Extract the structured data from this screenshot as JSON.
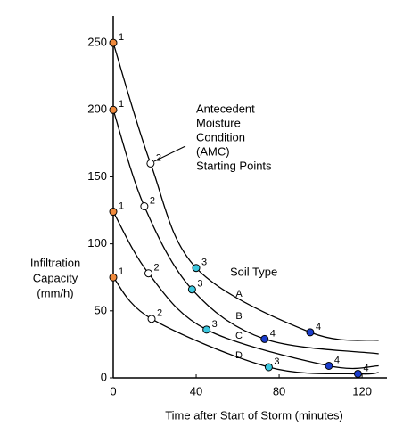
{
  "chart_data": {
    "type": "line",
    "xlabel": "Time after Start of Storm (minutes)",
    "ylabel": [
      "Infiltration",
      "Capacity",
      "(mm/h)"
    ],
    "annotation": [
      "Antecedent",
      "Moisture",
      "Condition",
      "(AMC)",
      "Starting Points"
    ],
    "legend_title": "Soil Type",
    "xlim": [
      0,
      132
    ],
    "ylim": [
      0,
      270
    ],
    "xticks": [
      0,
      40,
      80,
      120
    ],
    "yticks": [
      0,
      50,
      100,
      150,
      200,
      250
    ],
    "point_labels": [
      "1",
      "2",
      "3",
      "4"
    ],
    "marker_colors": [
      "#f08a3c",
      "#ffffff",
      "#3cc8e0",
      "#1a3ccc"
    ],
    "color": "#000000",
    "series": [
      {
        "name": "A",
        "x": [
          0,
          18,
          40,
          95,
          128
        ],
        "values": [
          250,
          160,
          82,
          34,
          28
        ]
      },
      {
        "name": "B",
        "x": [
          0,
          15,
          38,
          73,
          128
        ],
        "values": [
          200,
          128,
          66,
          29,
          18
        ]
      },
      {
        "name": "C",
        "x": [
          0,
          17,
          45,
          104,
          128
        ],
        "values": [
          124,
          78,
          36,
          9,
          9
        ]
      },
      {
        "name": "D",
        "x": [
          0,
          18.5,
          75,
          118,
          128
        ],
        "values": [
          75,
          44,
          8,
          3,
          4
        ]
      }
    ]
  }
}
